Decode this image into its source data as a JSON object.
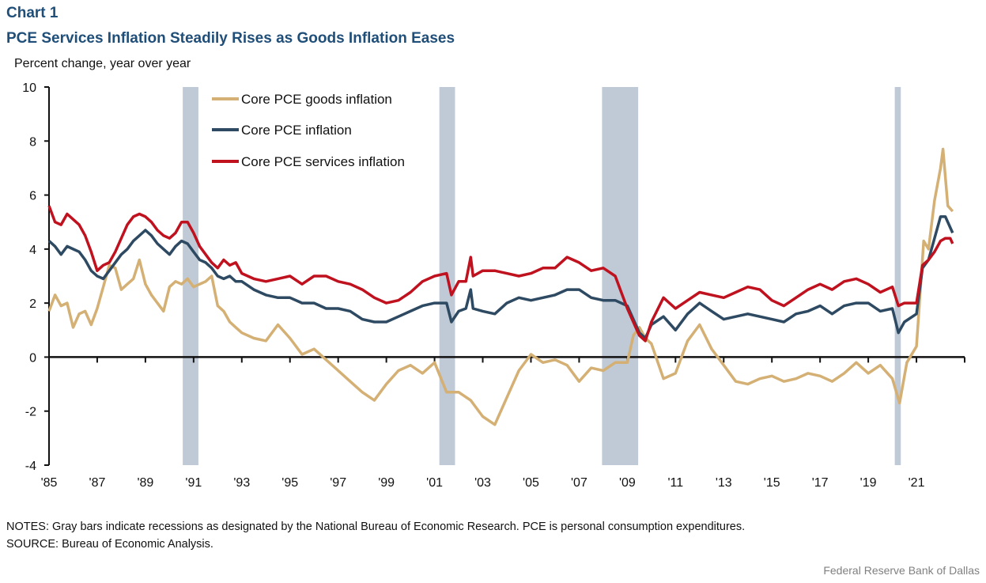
{
  "header": {
    "chart_number": "Chart 1",
    "title": "PCE Services Inflation Steadily Rises as Goods Inflation Eases",
    "unit_label": "Percent change,  year over year"
  },
  "footer": {
    "notes": "NOTES: Gray bars indicate recessions as designated by the National Bureau of Economic Research. PCE is personal consumption expenditures.",
    "source": "SOURCE:  Bureau of Economic Analysis.",
    "credit": "Federal Reserve  Bank of Dallas"
  },
  "colors": {
    "goods": "#d4b075",
    "core": "#2e4a62",
    "services": "#c0111f",
    "recession": "#bfcad6",
    "axis": "#111111"
  },
  "chart_data": {
    "type": "line",
    "title": "PCE Services Inflation Steadily Rises as Goods Inflation Eases",
    "xlabel": "",
    "ylabel": "Percent change, year over year",
    "xlim": [
      1985,
      2023
    ],
    "ylim": [
      -4,
      10
    ],
    "yticks": [
      -4,
      -2,
      0,
      2,
      4,
      6,
      8,
      10
    ],
    "xtick_labels": [
      "'85",
      "'87",
      "'89",
      "'91",
      "'93",
      "'95",
      "'97",
      "'99",
      "'01",
      "'03",
      "'05",
      "'07",
      "'09",
      "'11",
      "'13",
      "'15",
      "'17",
      "'19",
      "'21"
    ],
    "xtick_years": [
      1985,
      1987,
      1989,
      1991,
      1993,
      1995,
      1997,
      1999,
      2001,
      2003,
      2005,
      2007,
      2009,
      2011,
      2013,
      2015,
      2017,
      2019,
      2021,
      2023
    ],
    "grid": false,
    "legend_position": "top-left",
    "recessions": [
      [
        1990.55,
        1991.2
      ],
      [
        2001.2,
        2001.85
      ],
      [
        2007.95,
        2009.45
      ],
      [
        2020.1,
        2020.35
      ]
    ],
    "series": [
      {
        "name": "Core PCE goods inflation",
        "key": "goods",
        "x": [
          1985.0,
          1985.25,
          1985.5,
          1985.75,
          1986.0,
          1986.25,
          1986.5,
          1986.75,
          1987.0,
          1987.25,
          1987.5,
          1987.75,
          1988.0,
          1988.25,
          1988.5,
          1988.75,
          1989.0,
          1989.25,
          1989.5,
          1989.75,
          1990.0,
          1990.25,
          1990.5,
          1990.75,
          1991.0,
          1991.25,
          1991.5,
          1991.75,
          1992.0,
          1992.25,
          1992.5,
          1992.75,
          1993.0,
          1993.5,
          1994.0,
          1994.5,
          1995.0,
          1995.5,
          1996.0,
          1996.5,
          1997.0,
          1997.5,
          1998.0,
          1998.5,
          1999.0,
          1999.5,
          2000.0,
          2000.5,
          2001.0,
          2001.5,
          2002.0,
          2002.5,
          2003.0,
          2003.5,
          2004.0,
          2004.5,
          2005.0,
          2005.5,
          2006.0,
          2006.5,
          2007.0,
          2007.5,
          2008.0,
          2008.5,
          2009.0,
          2009.25,
          2009.5,
          2009.75,
          2010.0,
          2010.5,
          2011.0,
          2011.5,
          2012.0,
          2012.5,
          2013.0,
          2013.5,
          2014.0,
          2014.5,
          2015.0,
          2015.5,
          2016.0,
          2016.5,
          2017.0,
          2017.5,
          2018.0,
          2018.5,
          2019.0,
          2019.5,
          2020.0,
          2020.3,
          2020.6,
          2021.0,
          2021.3,
          2021.5,
          2021.75,
          2022.0,
          2022.1,
          2022.3,
          2022.5
        ],
        "values": [
          1.7,
          2.3,
          1.9,
          2.0,
          1.1,
          1.6,
          1.7,
          1.2,
          1.8,
          2.6,
          3.4,
          3.3,
          2.5,
          2.7,
          2.9,
          3.6,
          2.7,
          2.3,
          2.0,
          1.7,
          2.6,
          2.8,
          2.7,
          2.9,
          2.6,
          2.7,
          2.8,
          3.0,
          1.9,
          1.7,
          1.3,
          1.1,
          0.9,
          0.7,
          0.6,
          1.2,
          0.7,
          0.1,
          0.3,
          -0.1,
          -0.5,
          -0.9,
          -1.3,
          -1.6,
          -1.0,
          -0.5,
          -0.3,
          -0.6,
          -0.2,
          -1.3,
          -1.3,
          -1.6,
          -2.2,
          -2.5,
          -1.5,
          -0.5,
          0.1,
          -0.2,
          -0.1,
          -0.3,
          -0.9,
          -0.4,
          -0.5,
          -0.2,
          -0.2,
          0.8,
          1.1,
          0.7,
          0.5,
          -0.8,
          -0.6,
          0.6,
          1.2,
          0.3,
          -0.3,
          -0.9,
          -1.0,
          -0.8,
          -0.7,
          -0.9,
          -0.8,
          -0.6,
          -0.7,
          -0.9,
          -0.6,
          -0.2,
          -0.6,
          -0.3,
          -0.8,
          -1.7,
          -0.2,
          0.4,
          4.3,
          4.0,
          5.8,
          7.0,
          7.7,
          5.6,
          5.4
        ]
      },
      {
        "name": "Core PCE inflation",
        "key": "core",
        "x": [
          1985.0,
          1985.25,
          1985.5,
          1985.75,
          1986.0,
          1986.25,
          1986.5,
          1986.75,
          1987.0,
          1987.25,
          1987.5,
          1987.75,
          1988.0,
          1988.25,
          1988.5,
          1988.75,
          1989.0,
          1989.25,
          1989.5,
          1989.75,
          1990.0,
          1990.25,
          1990.5,
          1990.75,
          1991.0,
          1991.25,
          1991.5,
          1991.75,
          1992.0,
          1992.25,
          1992.5,
          1992.75,
          1993.0,
          1993.5,
          1994.0,
          1994.5,
          1995.0,
          1995.5,
          1996.0,
          1996.5,
          1997.0,
          1997.5,
          1998.0,
          1998.5,
          1999.0,
          1999.5,
          2000.0,
          2000.5,
          2001.0,
          2001.5,
          2001.7,
          2002.0,
          2002.3,
          2002.5,
          2002.6,
          2003.0,
          2003.5,
          2004.0,
          2004.5,
          2005.0,
          2005.5,
          2006.0,
          2006.5,
          2007.0,
          2007.5,
          2008.0,
          2008.5,
          2009.0,
          2009.5,
          2009.75,
          2010.0,
          2010.5,
          2011.0,
          2011.5,
          2012.0,
          2012.5,
          2013.0,
          2013.5,
          2014.0,
          2014.5,
          2015.0,
          2015.5,
          2016.0,
          2016.5,
          2017.0,
          2017.5,
          2018.0,
          2018.5,
          2019.0,
          2019.5,
          2020.0,
          2020.25,
          2020.5,
          2021.0,
          2021.25,
          2021.5,
          2021.75,
          2022.0,
          2022.2,
          2022.4,
          2022.5
        ],
        "values": [
          4.3,
          4.1,
          3.8,
          4.1,
          4.0,
          3.9,
          3.6,
          3.2,
          3.0,
          2.9,
          3.2,
          3.5,
          3.8,
          4.0,
          4.3,
          4.5,
          4.7,
          4.5,
          4.2,
          4.0,
          3.8,
          4.1,
          4.3,
          4.2,
          3.9,
          3.6,
          3.5,
          3.3,
          3.0,
          2.9,
          3.0,
          2.8,
          2.8,
          2.5,
          2.3,
          2.2,
          2.2,
          2.0,
          2.0,
          1.8,
          1.8,
          1.7,
          1.4,
          1.3,
          1.3,
          1.5,
          1.7,
          1.9,
          2.0,
          2.0,
          1.3,
          1.7,
          1.8,
          2.5,
          1.8,
          1.7,
          1.6,
          2.0,
          2.2,
          2.1,
          2.2,
          2.3,
          2.5,
          2.5,
          2.2,
          2.1,
          2.1,
          1.9,
          0.9,
          0.7,
          1.2,
          1.5,
          1.0,
          1.6,
          2.0,
          1.7,
          1.4,
          1.5,
          1.6,
          1.5,
          1.4,
          1.3,
          1.6,
          1.7,
          1.9,
          1.6,
          1.9,
          2.0,
          2.0,
          1.7,
          1.8,
          0.9,
          1.3,
          1.6,
          3.3,
          3.6,
          4.4,
          5.2,
          5.2,
          4.8,
          4.6
        ]
      },
      {
        "name": "Core PCE services inflation",
        "key": "services",
        "x": [
          1985.0,
          1985.25,
          1985.5,
          1985.75,
          1986.0,
          1986.25,
          1986.5,
          1986.75,
          1987.0,
          1987.25,
          1987.5,
          1987.75,
          1988.0,
          1988.25,
          1988.5,
          1988.75,
          1989.0,
          1989.25,
          1989.5,
          1989.75,
          1990.0,
          1990.25,
          1990.5,
          1990.75,
          1991.0,
          1991.25,
          1991.5,
          1991.75,
          1992.0,
          1992.25,
          1992.5,
          1992.75,
          1993.0,
          1993.5,
          1994.0,
          1994.5,
          1995.0,
          1995.5,
          1996.0,
          1996.5,
          1997.0,
          1997.5,
          1998.0,
          1998.5,
          1999.0,
          1999.5,
          2000.0,
          2000.5,
          2001.0,
          2001.5,
          2001.7,
          2002.0,
          2002.3,
          2002.5,
          2002.6,
          2003.0,
          2003.5,
          2004.0,
          2004.5,
          2005.0,
          2005.5,
          2006.0,
          2006.5,
          2007.0,
          2007.5,
          2008.0,
          2008.5,
          2009.0,
          2009.5,
          2009.75,
          2010.0,
          2010.5,
          2011.0,
          2011.5,
          2012.0,
          2012.5,
          2013.0,
          2013.5,
          2014.0,
          2014.5,
          2015.0,
          2015.5,
          2016.0,
          2016.5,
          2017.0,
          2017.5,
          2018.0,
          2018.5,
          2019.0,
          2019.5,
          2020.0,
          2020.25,
          2020.5,
          2021.0,
          2021.25,
          2021.5,
          2021.75,
          2022.0,
          2022.2,
          2022.4,
          2022.5
        ],
        "values": [
          5.6,
          5.0,
          4.9,
          5.3,
          5.1,
          4.9,
          4.5,
          3.9,
          3.2,
          3.4,
          3.5,
          3.9,
          4.4,
          4.9,
          5.2,
          5.3,
          5.2,
          5.0,
          4.7,
          4.5,
          4.4,
          4.6,
          5.0,
          5.0,
          4.6,
          4.1,
          3.8,
          3.5,
          3.3,
          3.6,
          3.4,
          3.5,
          3.1,
          2.9,
          2.8,
          2.9,
          3.0,
          2.7,
          3.0,
          3.0,
          2.8,
          2.7,
          2.5,
          2.2,
          2.0,
          2.1,
          2.4,
          2.8,
          3.0,
          3.1,
          2.3,
          2.8,
          2.8,
          3.7,
          3.0,
          3.2,
          3.2,
          3.1,
          3.0,
          3.1,
          3.3,
          3.3,
          3.7,
          3.5,
          3.2,
          3.3,
          3.0,
          1.8,
          0.8,
          0.6,
          1.3,
          2.2,
          1.8,
          2.1,
          2.4,
          2.3,
          2.2,
          2.4,
          2.6,
          2.5,
          2.1,
          1.9,
          2.2,
          2.5,
          2.7,
          2.5,
          2.8,
          2.9,
          2.7,
          2.4,
          2.6,
          1.9,
          2.0,
          2.0,
          3.4,
          3.6,
          3.9,
          4.3,
          4.4,
          4.4,
          4.2
        ]
      }
    ]
  }
}
